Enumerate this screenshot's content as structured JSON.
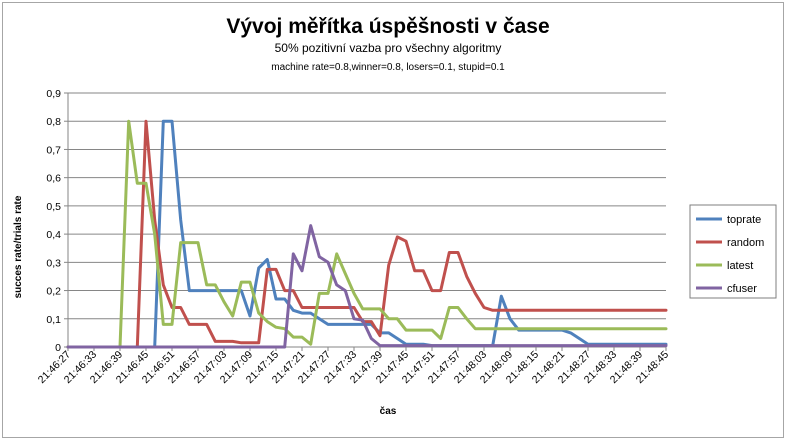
{
  "chart_data": {
    "type": "line",
    "title": "Vývoj měřítka úspěšnosti v čase",
    "subtitle": "50% pozitivní vazba pro všechny algoritmy",
    "subtitle2": "machine rate=0.8,winner=0.8, losers=0.1, stupid=0.1",
    "xlabel": "čas",
    "ylabel": "succes rate/trials rate",
    "ylim": [
      0,
      0.9
    ],
    "yticks": [
      "0",
      "0,1",
      "0,2",
      "0,3",
      "0,4",
      "0,5",
      "0,6",
      "0,7",
      "0,8",
      "0,9"
    ],
    "x_tick_labels": [
      "21:46:27",
      "21:46:33",
      "21:46:39",
      "21:46:45",
      "21:46:51",
      "21:46:57",
      "21:47:03",
      "21:47:09",
      "21:47:15",
      "21:47:21",
      "21:47:27",
      "21:47:33",
      "21:47:39",
      "21:47:45",
      "21:47:51",
      "21:47:57",
      "21:48:03",
      "21:48:09",
      "21:48:15",
      "21:48:21",
      "21:48:27",
      "21:48:33",
      "21:48:39",
      "21:48:45"
    ],
    "x": [
      "21:46:27",
      "21:46:29",
      "21:46:31",
      "21:46:33",
      "21:46:35",
      "21:46:37",
      "21:46:39",
      "21:46:41",
      "21:46:43",
      "21:46:45",
      "21:46:47",
      "21:46:49",
      "21:46:51",
      "21:46:53",
      "21:46:55",
      "21:46:57",
      "21:46:59",
      "21:47:01",
      "21:47:03",
      "21:47:05",
      "21:47:07",
      "21:47:09",
      "21:47:11",
      "21:47:13",
      "21:47:15",
      "21:47:17",
      "21:47:19",
      "21:47:21",
      "21:47:23",
      "21:47:25",
      "21:47:27",
      "21:47:29",
      "21:47:31",
      "21:47:33",
      "21:47:35",
      "21:47:37",
      "21:47:39",
      "21:47:41",
      "21:47:43",
      "21:47:45",
      "21:47:47",
      "21:47:49",
      "21:47:51",
      "21:47:53",
      "21:47:55",
      "21:47:57",
      "21:47:59",
      "21:48:01",
      "21:48:03",
      "21:48:05",
      "21:48:07",
      "21:48:09",
      "21:48:11",
      "21:48:13",
      "21:48:15",
      "21:48:17",
      "21:48:19",
      "21:48:21",
      "21:48:23",
      "21:48:25",
      "21:48:27",
      "21:48:29",
      "21:48:31",
      "21:48:33",
      "21:48:35",
      "21:48:37",
      "21:48:39",
      "21:48:41",
      "21:48:43",
      "21:48:45"
    ],
    "series": [
      {
        "name": "toprate",
        "color": "#4f81bd",
        "values": [
          0,
          0,
          0,
          0,
          0,
          0,
          0,
          0,
          0,
          0,
          0,
          0.8,
          0.8,
          0.45,
          0.2,
          0.2,
          0.2,
          0.2,
          0.2,
          0.2,
          0.2,
          0.11,
          0.28,
          0.31,
          0.17,
          0.17,
          0.13,
          0.12,
          0.12,
          0.1,
          0.08,
          0.08,
          0.08,
          0.08,
          0.08,
          0.08,
          0.05,
          0.05,
          0.03,
          0.01,
          0.01,
          0.01,
          0.005,
          0.005,
          0.005,
          0.005,
          0.005,
          0.005,
          0.005,
          0.005,
          0.18,
          0.1,
          0.06,
          0.06,
          0.06,
          0.06,
          0.06,
          0.06,
          0.05,
          0.03,
          0.01,
          0.01,
          0.01,
          0.01,
          0.01,
          0.01,
          0.01,
          0.01,
          0.01,
          0.01
        ]
      },
      {
        "name": "random",
        "color": "#c0504d",
        "values": [
          0,
          0,
          0,
          0,
          0,
          0,
          0,
          0,
          0,
          0.8,
          0.45,
          0.22,
          0.14,
          0.14,
          0.08,
          0.08,
          0.08,
          0.02,
          0.02,
          0.02,
          0.015,
          0.015,
          0.015,
          0.275,
          0.275,
          0.2,
          0.2,
          0.14,
          0.14,
          0.14,
          0.14,
          0.14,
          0.14,
          0.14,
          0.09,
          0.09,
          0.04,
          0.29,
          0.39,
          0.375,
          0.27,
          0.27,
          0.2,
          0.2,
          0.335,
          0.335,
          0.25,
          0.19,
          0.14,
          0.13,
          0.13,
          0.13,
          0.13,
          0.13,
          0.13,
          0.13,
          0.13,
          0.13,
          0.13,
          0.13,
          0.13,
          0.13,
          0.13,
          0.13,
          0.13,
          0.13,
          0.13,
          0.13,
          0.13,
          0.13
        ]
      },
      {
        "name": "latest",
        "color": "#9bbb59",
        "values": [
          0,
          0,
          0,
          0,
          0,
          0,
          0,
          0.8,
          0.58,
          0.58,
          0.4,
          0.08,
          0.08,
          0.37,
          0.37,
          0.37,
          0.22,
          0.22,
          0.16,
          0.11,
          0.23,
          0.23,
          0.12,
          0.09,
          0.07,
          0.065,
          0.035,
          0.035,
          0.01,
          0.19,
          0.19,
          0.33,
          0.26,
          0.19,
          0.135,
          0.135,
          0.135,
          0.1,
          0.1,
          0.06,
          0.06,
          0.06,
          0.06,
          0.03,
          0.14,
          0.14,
          0.1,
          0.065,
          0.065,
          0.065,
          0.065,
          0.065,
          0.065,
          0.065,
          0.065,
          0.065,
          0.065,
          0.065,
          0.065,
          0.065,
          0.065,
          0.065,
          0.065,
          0.065,
          0.065,
          0.065,
          0.065,
          0.065,
          0.065,
          0.065
        ]
      },
      {
        "name": "cfuser",
        "color": "#8064a2",
        "values": [
          0,
          0,
          0,
          0,
          0,
          0,
          0,
          0,
          0,
          0,
          0,
          0,
          0,
          0,
          0,
          0,
          0,
          0,
          0,
          0,
          0,
          0,
          0,
          0,
          0,
          0,
          0.33,
          0.27,
          0.43,
          0.32,
          0.3,
          0.22,
          0.2,
          0.1,
          0.095,
          0.03,
          0.005,
          0.005,
          0.005,
          0.005,
          0.005,
          0.005,
          0.005,
          0.005,
          0.005,
          0.005,
          0.005,
          0.005,
          0.005,
          0.005,
          0.005,
          0.005,
          0.005,
          0.005,
          0.005,
          0.005,
          0.005,
          0.005,
          0.005,
          0.005,
          0.005,
          0.005,
          0.005,
          0.005,
          0.005,
          0.005,
          0.005,
          0.005,
          0.005,
          0.005
        ]
      }
    ],
    "grid": true,
    "legend": "right"
  }
}
